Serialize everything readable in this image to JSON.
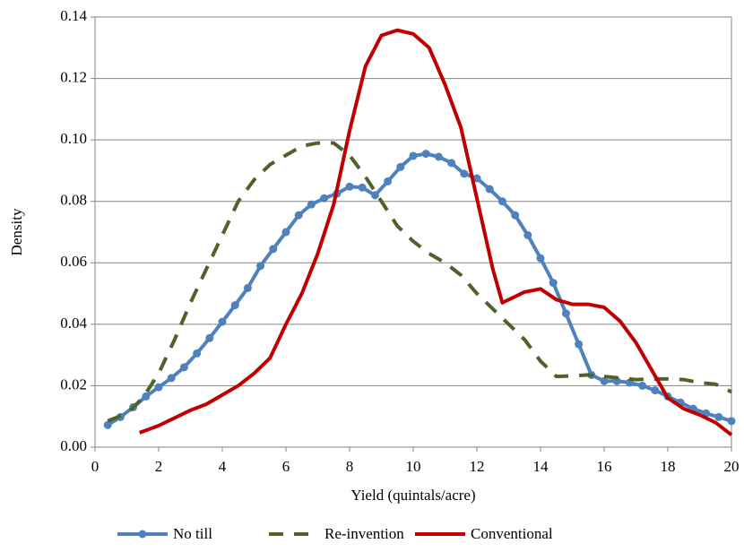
{
  "chart_data": {
    "type": "line",
    "x_label": "Yield (quintals/acre)",
    "y_label": "Density",
    "xlim": [
      0,
      20
    ],
    "xticks": [
      0,
      2,
      4,
      6,
      8,
      10,
      12,
      14,
      16,
      18,
      20
    ],
    "ylim": [
      0,
      0.14
    ],
    "yticks": [
      {
        "value": 0,
        "label": "0.00"
      },
      0.02,
      0.04,
      0.06,
      0.08,
      {
        "value": 0.1,
        "label": "0.10"
      },
      0.12,
      0.14
    ],
    "grid": true,
    "legend": "bottom",
    "series": [
      {
        "name": "No till",
        "color": "#4f81bd",
        "markers": true,
        "dashed": false,
        "x": [
          0.4,
          0.8,
          1.2,
          1.6,
          2.0,
          2.4,
          2.8,
          3.2,
          3.6,
          4.0,
          4.4,
          4.8,
          5.2,
          5.6,
          6.0,
          6.4,
          6.8,
          7.2,
          7.6,
          8.0,
          8.4,
          8.8,
          9.2,
          9.6,
          10.0,
          10.4,
          10.8,
          11.2,
          11.6,
          12.0,
          12.4,
          12.8,
          13.2,
          13.6,
          14.0,
          14.4,
          14.8,
          15.2,
          15.6,
          16.0,
          16.4,
          16.8,
          17.2,
          17.6,
          18.0,
          18.4,
          18.8,
          19.2,
          19.6,
          20.0
        ],
        "values": [
          0.0072,
          0.0098,
          0.013,
          0.0165,
          0.0195,
          0.0225,
          0.026,
          0.0305,
          0.0355,
          0.0408,
          0.0462,
          0.0518,
          0.059,
          0.0645,
          0.07,
          0.0755,
          0.079,
          0.081,
          0.0825,
          0.0848,
          0.0845,
          0.082,
          0.0865,
          0.0912,
          0.0948,
          0.0955,
          0.0945,
          0.0925,
          0.089,
          0.0875,
          0.084,
          0.08,
          0.0755,
          0.069,
          0.0615,
          0.0535,
          0.0435,
          0.0335,
          0.0235,
          0.0215,
          0.0215,
          0.021,
          0.02,
          0.0185,
          0.0165,
          0.0145,
          0.0125,
          0.011,
          0.0098,
          0.0085
        ]
      },
      {
        "name": "Re-invention",
        "color": "#4f6228",
        "markers": false,
        "dashed": true,
        "x": [
          0.4,
          1,
          1.5,
          2,
          2.5,
          3,
          3.5,
          4,
          4.5,
          5,
          5.5,
          6,
          6.5,
          7,
          7.5,
          8,
          8.5,
          9,
          9.5,
          10,
          10.5,
          11,
          11.5,
          12,
          12.5,
          13,
          13.5,
          14,
          14.5,
          15,
          15.5,
          16,
          16.5,
          17,
          17.5,
          18,
          18.5,
          19,
          19.5,
          20
        ],
        "values": [
          0.0085,
          0.011,
          0.016,
          0.024,
          0.035,
          0.047,
          0.058,
          0.069,
          0.08,
          0.087,
          0.092,
          0.095,
          0.098,
          0.099,
          0.099,
          0.095,
          0.088,
          0.08,
          0.072,
          0.067,
          0.063,
          0.06,
          0.056,
          0.05,
          0.045,
          0.04,
          0.035,
          0.028,
          0.023,
          0.0232,
          0.0235,
          0.023,
          0.0225,
          0.022,
          0.0222,
          0.0222,
          0.022,
          0.021,
          0.0205,
          0.018
        ]
      },
      {
        "name": "Conventional",
        "color": "#c00000",
        "markers": false,
        "dashed": false,
        "x": [
          1.4,
          2,
          2.5,
          3,
          3.5,
          4,
          4.5,
          5,
          5.5,
          6,
          6.5,
          7,
          7.5,
          8,
          8.5,
          9,
          9.5,
          10,
          10.5,
          11,
          11.5,
          12,
          12.5,
          12.8,
          13,
          13.5,
          14,
          14.5,
          15,
          15.5,
          16,
          16.5,
          17,
          17.5,
          18,
          18.5,
          19,
          19.5,
          20
        ],
        "values": [
          0.0047,
          0.007,
          0.0095,
          0.012,
          0.014,
          0.017,
          0.02,
          0.024,
          0.029,
          0.04,
          0.05,
          0.063,
          0.079,
          0.103,
          0.124,
          0.134,
          0.1357,
          0.1345,
          0.13,
          0.118,
          0.104,
          0.081,
          0.058,
          0.047,
          0.048,
          0.0505,
          0.0515,
          0.048,
          0.0465,
          0.0465,
          0.0455,
          0.041,
          0.034,
          0.025,
          0.016,
          0.0125,
          0.0105,
          0.008,
          0.004
        ]
      }
    ]
  }
}
